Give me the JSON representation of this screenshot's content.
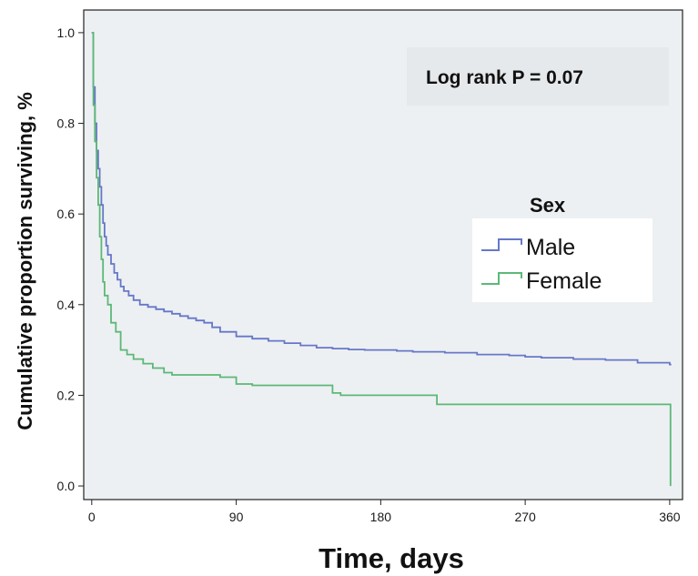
{
  "chart_data": {
    "type": "line",
    "step": true,
    "xlabel": "Time, days",
    "ylabel": "Cumulative proportion surviving, %",
    "xlim": [
      -5,
      368
    ],
    "ylim": [
      -0.03,
      1.05
    ],
    "xticks": [
      0,
      90,
      180,
      270,
      360
    ],
    "xtick_labels": [
      "0",
      "90",
      "180",
      "270",
      "360"
    ],
    "yticks": [
      0.0,
      0.2,
      0.4,
      0.6,
      0.8,
      1.0
    ],
    "ytick_labels": [
      "0.0",
      "0.2",
      "0.4",
      "0.6",
      "0.8",
      "1.0"
    ],
    "annotation": "Log rank P = 0.07",
    "legend_title": "Sex",
    "legend_position": "right",
    "plot_background": "#edf0f2",
    "series": [
      {
        "name": "Male",
        "color": "#6677c8",
        "x": [
          0,
          1,
          2,
          3,
          4,
          5,
          6,
          7,
          8,
          9,
          10,
          12,
          14,
          16,
          18,
          20,
          23,
          26,
          30,
          35,
          40,
          45,
          50,
          55,
          60,
          65,
          70,
          75,
          80,
          90,
          100,
          110,
          120,
          130,
          140,
          150,
          160,
          170,
          180,
          190,
          200,
          220,
          240,
          260,
          270,
          280,
          300,
          320,
          340,
          360,
          361
        ],
        "y": [
          1.0,
          0.88,
          0.8,
          0.74,
          0.7,
          0.66,
          0.62,
          0.58,
          0.55,
          0.53,
          0.51,
          0.49,
          0.47,
          0.455,
          0.44,
          0.43,
          0.42,
          0.41,
          0.4,
          0.395,
          0.39,
          0.385,
          0.38,
          0.375,
          0.37,
          0.365,
          0.36,
          0.35,
          0.34,
          0.33,
          0.325,
          0.32,
          0.315,
          0.31,
          0.305,
          0.303,
          0.301,
          0.3,
          0.3,
          0.298,
          0.296,
          0.294,
          0.29,
          0.288,
          0.285,
          0.283,
          0.28,
          0.278,
          0.272,
          0.268,
          0.268
        ]
      },
      {
        "name": "Female",
        "color": "#5cb878",
        "x": [
          0,
          1,
          2,
          3,
          4,
          5,
          6,
          7,
          8,
          10,
          12,
          15,
          18,
          22,
          26,
          32,
          38,
          45,
          50,
          60,
          70,
          80,
          90,
          100,
          110,
          125,
          150,
          155,
          175,
          200,
          215,
          240,
          270,
          300,
          330,
          360,
          360.5
        ],
        "y": [
          1.0,
          0.84,
          0.76,
          0.68,
          0.62,
          0.55,
          0.5,
          0.45,
          0.42,
          0.4,
          0.36,
          0.34,
          0.3,
          0.29,
          0.28,
          0.27,
          0.26,
          0.25,
          0.245,
          0.245,
          0.245,
          0.24,
          0.225,
          0.222,
          0.222,
          0.222,
          0.205,
          0.2,
          0.2,
          0.2,
          0.18,
          0.18,
          0.18,
          0.18,
          0.18,
          0.18,
          0.0
        ]
      }
    ]
  }
}
